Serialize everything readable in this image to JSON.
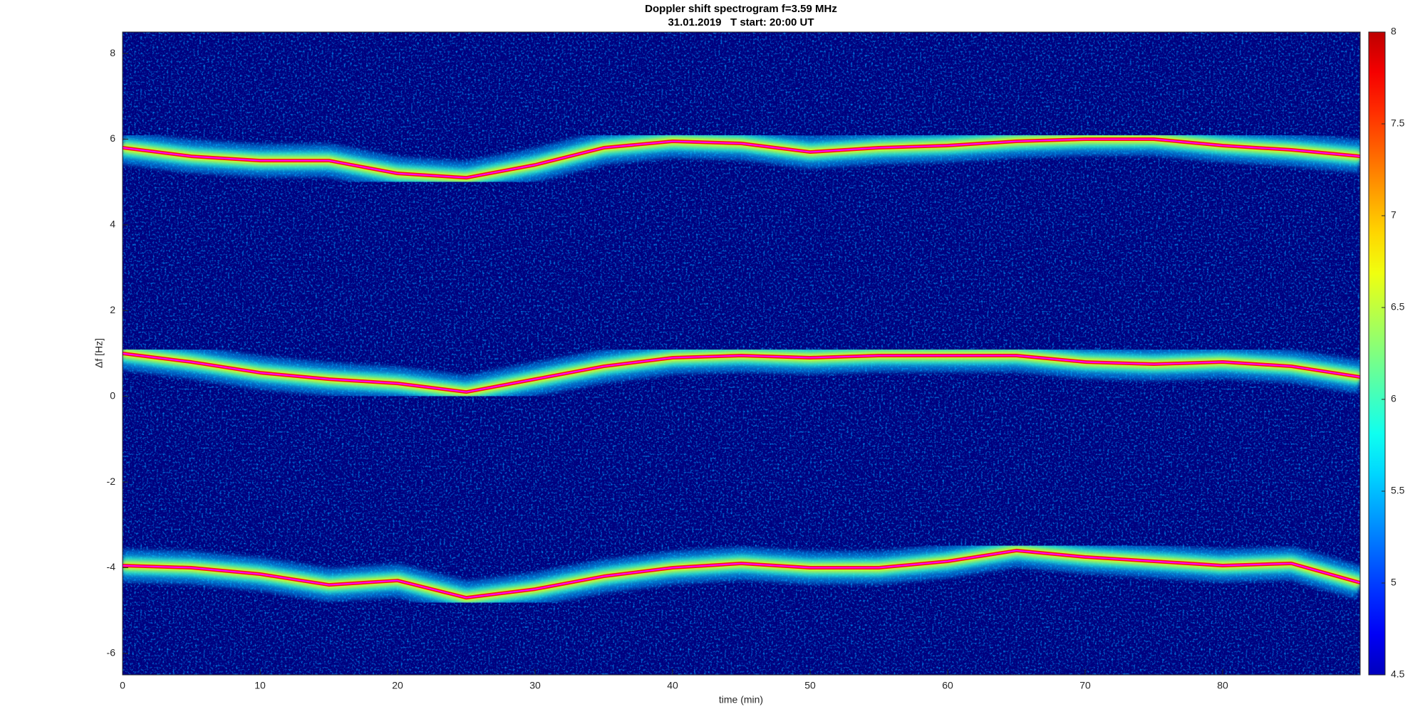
{
  "chart_data": {
    "type": "spectrogram",
    "title": "Doppler shift spectrogram f=3.59 MHz",
    "subtitle": "31.01.2019   T start: 20:00 UT",
    "x_label": "time (min)",
    "y_label": "Δf [Hz]",
    "xlim": [
      0,
      90
    ],
    "xticks": [
      0,
      10,
      20,
      30,
      40,
      50,
      60,
      70,
      80
    ],
    "ylim": [
      -6.5,
      8.5
    ],
    "yticks": [
      -6,
      -4,
      -2,
      0,
      2,
      4,
      6,
      8
    ],
    "colormap": "jet",
    "background": "#00007f",
    "clim": [
      4.5,
      8
    ],
    "cticks": [
      4.5,
      5,
      5.5,
      6,
      6.5,
      7,
      7.5,
      8
    ],
    "x": [
      0,
      5,
      10,
      15,
      20,
      25,
      30,
      35,
      40,
      45,
      50,
      55,
      60,
      65,
      70,
      75,
      80,
      85,
      90
    ],
    "series": [
      {
        "color": "#ff00ff",
        "values": [
          5.8,
          5.6,
          5.5,
          5.5,
          5.2,
          5.1,
          5.4,
          5.8,
          5.95,
          5.9,
          5.7,
          5.8,
          5.85,
          5.95,
          6.0,
          6.0,
          5.85,
          5.75,
          5.6
        ]
      },
      {
        "color": "#ff00ff",
        "values": [
          1.0,
          0.8,
          0.55,
          0.4,
          0.3,
          0.1,
          0.4,
          0.7,
          0.9,
          0.95,
          0.9,
          0.95,
          0.95,
          0.95,
          0.8,
          0.75,
          0.8,
          0.7,
          0.45
        ]
      },
      {
        "color": "#ff00ff",
        "values": [
          -3.95,
          -4.0,
          -4.15,
          -4.4,
          -4.3,
          -4.7,
          -4.5,
          -4.2,
          -4.0,
          -3.9,
          -4.0,
          -4.0,
          -3.85,
          -3.6,
          -3.75,
          -3.85,
          -3.95,
          -3.9,
          -4.35
        ]
      }
    ]
  }
}
